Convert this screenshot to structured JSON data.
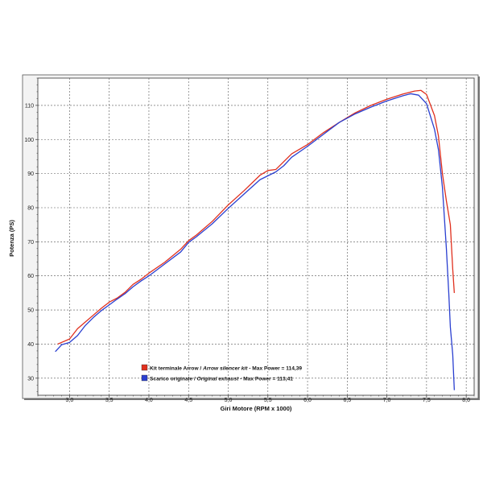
{
  "chart_data": {
    "type": "line",
    "xlabel": "Giri Motore (RPM x 1000)",
    "ylabel": "Potenza (PS)",
    "xlim": [
      2.6,
      8.1
    ],
    "ylim": [
      25,
      118
    ],
    "xticks": [
      "3,0",
      "3,5",
      "4,0",
      "4,5",
      "5,0",
      "5,5",
      "6,0",
      "6,5",
      "7,0",
      "7,5",
      "8,0"
    ],
    "xtick_values": [
      3.0,
      3.5,
      4.0,
      4.5,
      5.0,
      5.5,
      6.0,
      6.5,
      7.0,
      7.5,
      8.0
    ],
    "yticks": [
      "30",
      "40",
      "50",
      "60",
      "70",
      "80",
      "90",
      "100",
      "110"
    ],
    "ytick_values": [
      30,
      40,
      50,
      60,
      70,
      80,
      90,
      100,
      110
    ],
    "grid": true,
    "legend_position": "bottom-left",
    "series": [
      {
        "label": "Kit terminale Arrow / ",
        "label_italic": "Arrow silencer kit",
        "label_suffix": " - Max Power = 114,39",
        "color": "#e0301e",
        "points": [
          [
            2.85,
            40.0
          ],
          [
            3.0,
            41.5
          ],
          [
            3.1,
            44.5
          ],
          [
            3.2,
            46.5
          ],
          [
            3.3,
            48.5
          ],
          [
            3.4,
            50.5
          ],
          [
            3.5,
            52.3
          ],
          [
            3.6,
            53.5
          ],
          [
            3.7,
            55.2
          ],
          [
            3.8,
            57.5
          ],
          [
            3.9,
            59.0
          ],
          [
            4.0,
            60.8
          ],
          [
            4.2,
            64.0
          ],
          [
            4.4,
            67.8
          ],
          [
            4.5,
            70.3
          ],
          [
            4.6,
            72.0
          ],
          [
            4.8,
            76.0
          ],
          [
            5.0,
            80.8
          ],
          [
            5.2,
            85.0
          ],
          [
            5.4,
            89.5
          ],
          [
            5.5,
            90.9
          ],
          [
            5.6,
            91.2
          ],
          [
            5.7,
            93.5
          ],
          [
            5.8,
            95.8
          ],
          [
            6.0,
            98.5
          ],
          [
            6.2,
            102.0
          ],
          [
            6.4,
            105.0
          ],
          [
            6.6,
            107.8
          ],
          [
            6.8,
            110.0
          ],
          [
            7.0,
            111.8
          ],
          [
            7.2,
            113.3
          ],
          [
            7.35,
            114.2
          ],
          [
            7.43,
            114.39
          ],
          [
            7.5,
            113.2
          ],
          [
            7.6,
            107.0
          ],
          [
            7.65,
            101.0
          ],
          [
            7.7,
            90.0
          ],
          [
            7.75,
            82.0
          ],
          [
            7.8,
            75.0
          ],
          [
            7.83,
            62.0
          ],
          [
            7.85,
            55.0
          ]
        ]
      },
      {
        "label": "Scarico originale / ",
        "label_italic": "Original exhaust",
        "label_suffix": " - Max Power = 113,41",
        "color": "#2a3fd0",
        "points": [
          [
            2.82,
            37.8
          ],
          [
            2.9,
            39.8
          ],
          [
            3.0,
            40.5
          ],
          [
            3.1,
            42.5
          ],
          [
            3.2,
            45.5
          ],
          [
            3.3,
            47.8
          ],
          [
            3.4,
            49.8
          ],
          [
            3.5,
            51.5
          ],
          [
            3.6,
            53.2
          ],
          [
            3.7,
            54.8
          ],
          [
            3.8,
            56.8
          ],
          [
            3.9,
            58.5
          ],
          [
            4.0,
            60.0
          ],
          [
            4.2,
            63.5
          ],
          [
            4.4,
            67.0
          ],
          [
            4.5,
            69.8
          ],
          [
            4.6,
            71.5
          ],
          [
            4.8,
            75.3
          ],
          [
            5.0,
            79.8
          ],
          [
            5.2,
            84.0
          ],
          [
            5.4,
            88.2
          ],
          [
            5.6,
            90.5
          ],
          [
            5.7,
            92.3
          ],
          [
            5.8,
            94.8
          ],
          [
            6.0,
            98.0
          ],
          [
            6.2,
            101.5
          ],
          [
            6.4,
            105.0
          ],
          [
            6.6,
            107.5
          ],
          [
            6.8,
            109.5
          ],
          [
            7.0,
            111.3
          ],
          [
            7.2,
            112.8
          ],
          [
            7.3,
            113.41
          ],
          [
            7.4,
            113.0
          ],
          [
            7.5,
            110.5
          ],
          [
            7.6,
            103.0
          ],
          [
            7.65,
            97.0
          ],
          [
            7.7,
            86.0
          ],
          [
            7.75,
            68.0
          ],
          [
            7.78,
            55.0
          ],
          [
            7.8,
            45.0
          ],
          [
            7.83,
            37.0
          ],
          [
            7.85,
            26.5
          ]
        ]
      }
    ]
  }
}
